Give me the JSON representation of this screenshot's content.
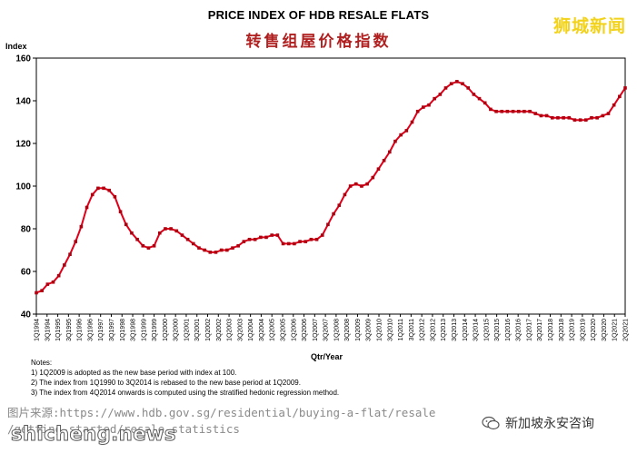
{
  "header": {
    "title": "PRICE INDEX OF HDB RESALE FLATS",
    "subtitle_cn": "转售组屋价格指数",
    "watermark": "狮城新闻"
  },
  "chart_data": {
    "type": "line",
    "title": "PRICE INDEX OF HDB RESALE FLATS",
    "ylabel": "Index",
    "xlabel": "Qtr/Year",
    "ylim": [
      40,
      160
    ],
    "yticks": [
      40,
      60,
      80,
      100,
      120,
      140,
      160
    ],
    "grid": false,
    "legend": "none",
    "line_color": "#e0001a",
    "marker_color": "#b00010",
    "tick_labels": [
      "1Q1994",
      "3Q1994",
      "1Q1995",
      "3Q1995",
      "1Q1996",
      "3Q1996",
      "1Q1997",
      "3Q1997",
      "1Q1998",
      "3Q1998",
      "1Q1999",
      "3Q1999",
      "1Q2000",
      "3Q2000",
      "1Q2001",
      "3Q2001",
      "1Q2002",
      "3Q2002",
      "1Q2003",
      "3Q2003",
      "1Q2004",
      "3Q2004",
      "1Q2005",
      "3Q2005",
      "1Q2006",
      "3Q2006",
      "1Q2007",
      "3Q2007",
      "1Q2008",
      "3Q2008",
      "1Q2009",
      "3Q2009",
      "1Q2010",
      "3Q2010",
      "1Q2011",
      "3Q2011",
      "1Q2012",
      "3Q2012",
      "1Q2013",
      "3Q2013",
      "1Q2014",
      "3Q2014",
      "1Q2015",
      "3Q2015",
      "1Q2016",
      "3Q2016",
      "1Q2017",
      "3Q2017",
      "1Q2018",
      "3Q2018",
      "1Q2019",
      "3Q2019",
      "1Q2020",
      "3Q2020",
      "1Q2021",
      "2Q2021"
    ],
    "series": [
      {
        "values": [
          50,
          51,
          54,
          55,
          58,
          63,
          68,
          74,
          81,
          90,
          96,
          99,
          99,
          98,
          95,
          88,
          82,
          78,
          75,
          72,
          71,
          72,
          78,
          80,
          80,
          79,
          77,
          75,
          73,
          71,
          70,
          69,
          69,
          70,
          70,
          71,
          72,
          74,
          75,
          75,
          76,
          76,
          77,
          77,
          73,
          73,
          73,
          74,
          74,
          75,
          75,
          77,
          82,
          87,
          91,
          96,
          100,
          101,
          100,
          101,
          104,
          108,
          112,
          116,
          121,
          124,
          126,
          130,
          135,
          137,
          138,
          141,
          143,
          146,
          148,
          149,
          148,
          146,
          143,
          141,
          139,
          136,
          135,
          135,
          135,
          135,
          135,
          135,
          135,
          134,
          133,
          133,
          132,
          132,
          132,
          132,
          131,
          131,
          131,
          132,
          132,
          133,
          134,
          138,
          142,
          146
        ]
      }
    ]
  },
  "notes": {
    "heading": "Notes:",
    "lines": [
      "1) 1Q2009 is adopted as the new base period with index at 100.",
      "2) The index from 1Q1990 to 3Q2014 is rebased to the new base period at 1Q2009.",
      "3) The index from 4Q2014 onwards is computed using the stratified hedonic regression method."
    ]
  },
  "footer": {
    "source_line1": "图片来源:https://www.hdb.gov.sg/residential/buying-a-flat/resale",
    "source_line2": "/getting-started/resale-statistics",
    "brand": "shicheng.news",
    "wechat_account": "新加坡永安咨询"
  }
}
